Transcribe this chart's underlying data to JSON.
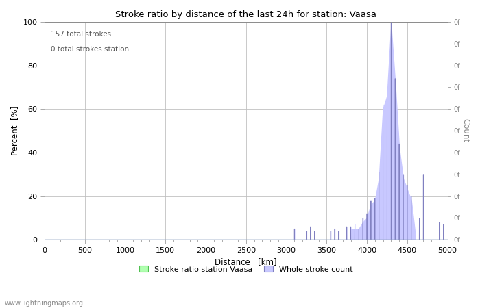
{
  "title": "Stroke ratio by distance of the last 24h for station: Vaasa",
  "xlabel": "Distance   [km]",
  "ylabel_left": "Percent  [%]",
  "ylabel_right": "Count",
  "annotation_line1": "157 total strokes",
  "annotation_line2": "0 total strokes station",
  "watermark": "www.lightningmaps.org",
  "xlim": [
    0,
    5000
  ],
  "ylim": [
    0,
    100
  ],
  "xticks": [
    0,
    500,
    1000,
    1500,
    2000,
    2500,
    3000,
    3500,
    4000,
    4500,
    5000
  ],
  "yticks_left": [
    0,
    20,
    40,
    60,
    80,
    100
  ],
  "right_axis_labels": [
    "0f",
    "0f",
    "0f",
    "0f",
    "0f",
    "0f",
    "0f",
    "0f",
    "0f",
    "0f",
    "0f"
  ],
  "right_axis_positions": [
    0,
    10,
    20,
    30,
    40,
    50,
    60,
    70,
    80,
    90,
    100
  ],
  "fill_color": "#c8c8ff",
  "line_color": "#8080c0",
  "station_fill_color": "#b0ffb0",
  "station_line_color": "#50c050",
  "background_color": "#ffffff",
  "grid_color": "#c0c0c0",
  "legend_label_station": "Stroke ratio station Vaasa",
  "legend_label_whole": "Whole stroke count",
  "spike_distances": [
    3100,
    3250,
    3300,
    3350,
    3550,
    3600,
    3650,
    3750,
    3800,
    3850,
    3900,
    3950,
    4000,
    4050,
    4100,
    4150,
    4200,
    4250,
    4300,
    4350,
    4400,
    4450,
    4500,
    4550,
    4650,
    4700,
    4900,
    4950
  ],
  "spike_values": [
    5,
    4,
    6,
    4,
    4,
    5,
    4,
    6,
    6,
    7,
    5,
    10,
    12,
    18,
    19,
    31,
    62,
    68,
    100,
    74,
    44,
    30,
    25,
    20,
    10,
    30,
    8,
    7
  ],
  "envelope_x": [
    3800,
    3850,
    3900,
    3950,
    4000,
    4050,
    4100,
    4150,
    4200,
    4250,
    4300,
    4350,
    4400,
    4450,
    4500,
    4550,
    4600
  ],
  "envelope_y": [
    5,
    5,
    5,
    8,
    10,
    16,
    18,
    28,
    60,
    66,
    98,
    72,
    42,
    28,
    23,
    18,
    2
  ]
}
